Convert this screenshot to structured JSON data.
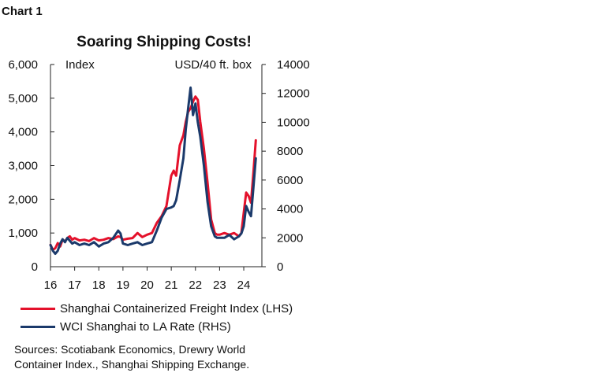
{
  "page": {
    "label": "Chart 1"
  },
  "chart_data": {
    "type": "line",
    "title": "Soaring Shipping Costs!",
    "left_axis_label": "Index",
    "right_axis_label": "USD/40 ft. box",
    "x_ticks": [
      "16",
      "17",
      "18",
      "19",
      "20",
      "21",
      "22",
      "23",
      "24"
    ],
    "xlim": [
      2016,
      2024.75
    ],
    "left_ticks": [
      "0",
      "1,000",
      "2,000",
      "3,000",
      "4,000",
      "5,000",
      "6,000"
    ],
    "right_ticks": [
      "0",
      "2000",
      "4000",
      "6000",
      "8000",
      "10000",
      "12000",
      "14000"
    ],
    "ylim_left": [
      0,
      6000
    ],
    "ylim_right": [
      0,
      14000
    ],
    "grid": false,
    "series": [
      {
        "name": "Shanghai Containerized Freight Index (LHS)",
        "axis": "left",
        "color": "#e4112b",
        "x": [
          2016.0,
          2016.1,
          2016.2,
          2016.3,
          2016.4,
          2016.5,
          2016.6,
          2016.7,
          2016.8,
          2016.9,
          2017.0,
          2017.2,
          2017.4,
          2017.6,
          2017.8,
          2018.0,
          2018.2,
          2018.4,
          2018.6,
          2018.8,
          2018.9,
          2019.0,
          2019.2,
          2019.4,
          2019.6,
          2019.8,
          2020.0,
          2020.2,
          2020.4,
          2020.6,
          2020.8,
          2021.0,
          2021.1,
          2021.2,
          2021.35,
          2021.5,
          2021.6,
          2021.7,
          2021.8,
          2021.9,
          2022.0,
          2022.1,
          2022.2,
          2022.35,
          2022.5,
          2022.65,
          2022.8,
          2022.9,
          2023.0,
          2023.2,
          2023.4,
          2023.6,
          2023.8,
          2023.9,
          2024.0,
          2024.1,
          2024.2,
          2024.3,
          2024.4,
          2024.5
        ],
        "values": [
          650,
          500,
          550,
          700,
          600,
          800,
          750,
          850,
          900,
          800,
          850,
          780,
          800,
          760,
          850,
          780,
          800,
          850,
          820,
          900,
          880,
          800,
          830,
          850,
          1000,
          880,
          950,
          1000,
          1300,
          1500,
          1800,
          2700,
          2850,
          2700,
          3600,
          3900,
          4300,
          4600,
          4700,
          4900,
          5050,
          4950,
          4300,
          3500,
          2500,
          1400,
          1000,
          950,
          950,
          1000,
          950,
          1000,
          900,
          1000,
          1600,
          2200,
          2100,
          1900,
          2800,
          3750
        ]
      },
      {
        "name": "WCI Shanghai to LA Rate (RHS)",
        "axis": "right",
        "color": "#1b3a6b",
        "x": [
          2016.0,
          2016.1,
          2016.2,
          2016.3,
          2016.4,
          2016.5,
          2016.6,
          2016.7,
          2016.8,
          2016.9,
          2017.0,
          2017.2,
          2017.4,
          2017.6,
          2017.8,
          2018.0,
          2018.2,
          2018.4,
          2018.6,
          2018.8,
          2018.9,
          2019.0,
          2019.2,
          2019.4,
          2019.6,
          2019.8,
          2020.0,
          2020.2,
          2020.4,
          2020.6,
          2020.8,
          2021.0,
          2021.1,
          2021.2,
          2021.35,
          2021.5,
          2021.6,
          2021.7,
          2021.8,
          2021.9,
          2022.0,
          2022.1,
          2022.2,
          2022.35,
          2022.5,
          2022.65,
          2022.8,
          2022.9,
          2023.0,
          2023.2,
          2023.4,
          2023.6,
          2023.8,
          2023.9,
          2024.0,
          2024.1,
          2024.2,
          2024.3,
          2024.4,
          2024.5
        ],
        "values": [
          1500,
          1100,
          900,
          1100,
          1600,
          1900,
          1700,
          2000,
          1800,
          1600,
          1700,
          1500,
          1600,
          1500,
          1700,
          1400,
          1600,
          1700,
          2000,
          2500,
          2300,
          1600,
          1500,
          1600,
          1700,
          1500,
          1600,
          1700,
          2500,
          3400,
          4000,
          4100,
          4200,
          4600,
          6000,
          7500,
          9500,
          11000,
          12400,
          10500,
          11300,
          10000,
          9000,
          7000,
          4500,
          2800,
          2100,
          2000,
          2000,
          2000,
          2200,
          1900,
          2100,
          2300,
          2800,
          4200,
          3800,
          3500,
          5500,
          7500
        ]
      }
    ]
  },
  "source": {
    "line1": "Sources: Scotiabank Economics, Drewry World",
    "line2": "Container Index., Shanghai Shipping Exchange."
  }
}
